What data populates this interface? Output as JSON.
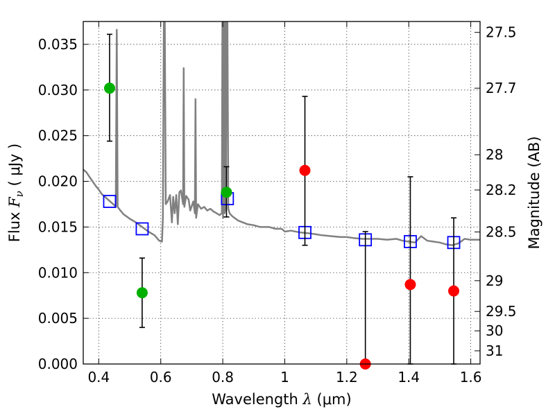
{
  "chart_data": {
    "type": "scatter",
    "xlabel": {
      "prefix": "Wavelength  ",
      "symbol": "λ",
      "unit": " (μm)"
    },
    "ylabel": {
      "prefix": "Flux  ",
      "symbol": "F",
      "subscript": "ν",
      "unit": "  ( μJy )"
    },
    "y2label": "Magnitude (AB)",
    "xlim": [
      0.35,
      1.63
    ],
    "ylim": [
      0.0,
      0.0375
    ],
    "grid": true,
    "xticks": [
      {
        "value": 0.4,
        "label": "0.4"
      },
      {
        "value": 0.6,
        "label": "0.6"
      },
      {
        "value": 0.8,
        "label": "0.8"
      },
      {
        "value": 1.0,
        "label": "1"
      },
      {
        "value": 1.2,
        "label": "1.2"
      },
      {
        "value": 1.4,
        "label": "1.4"
      },
      {
        "value": 1.6,
        "label": "1.6"
      }
    ],
    "yticks": [
      {
        "value": 0.0,
        "label": "0.000"
      },
      {
        "value": 0.005,
        "label": "0.005"
      },
      {
        "value": 0.01,
        "label": "0.010"
      },
      {
        "value": 0.015,
        "label": "0.015"
      },
      {
        "value": 0.02,
        "label": "0.020"
      },
      {
        "value": 0.025,
        "label": "0.025"
      },
      {
        "value": 0.03,
        "label": "0.030"
      },
      {
        "value": 0.035,
        "label": "0.035"
      }
    ],
    "y2ticks": [
      {
        "value": 27.5,
        "label": "27.5"
      },
      {
        "value": 27.7,
        "label": "27.7"
      },
      {
        "value": 28.0,
        "label": "28"
      },
      {
        "value": 28.2,
        "label": "28.2"
      },
      {
        "value": 28.5,
        "label": "28.5"
      },
      {
        "value": 29.0,
        "label": "29"
      },
      {
        "value": 29.5,
        "label": "29.5"
      },
      {
        "value": 30.0,
        "label": "30"
      },
      {
        "value": 31.0,
        "label": "31"
      }
    ],
    "colors": {
      "model": "#808080",
      "green": "#00b000",
      "red": "#ff0000",
      "box": "#0000ff",
      "errorbar": "#000000",
      "grid": "#444444"
    },
    "model_spectrum": [
      [
        0.35,
        0.0213
      ],
      [
        0.36,
        0.021
      ],
      [
        0.37,
        0.0205
      ],
      [
        0.38,
        0.02
      ],
      [
        0.39,
        0.0195
      ],
      [
        0.4,
        0.0191
      ],
      [
        0.41,
        0.0186
      ],
      [
        0.42,
        0.0183
      ],
      [
        0.43,
        0.018
      ],
      [
        0.44,
        0.0177
      ],
      [
        0.45,
        0.0174
      ],
      [
        0.455,
        0.0172
      ],
      [
        0.458,
        0.0366
      ],
      [
        0.461,
        0.0172
      ],
      [
        0.47,
        0.0168
      ],
      [
        0.48,
        0.0164
      ],
      [
        0.5,
        0.0159
      ],
      [
        0.52,
        0.0155
      ],
      [
        0.54,
        0.015
      ],
      [
        0.56,
        0.0145
      ],
      [
        0.58,
        0.0141
      ],
      [
        0.595,
        0.0135
      ],
      [
        0.604,
        0.0134
      ],
      [
        0.607,
        0.016
      ],
      [
        0.61,
        0.038
      ],
      [
        0.613,
        0.038
      ],
      [
        0.616,
        0.0175
      ],
      [
        0.622,
        0.0178
      ],
      [
        0.63,
        0.0185
      ],
      [
        0.636,
        0.0155
      ],
      [
        0.64,
        0.0183
      ],
      [
        0.645,
        0.0165
      ],
      [
        0.65,
        0.0185
      ],
      [
        0.655,
        0.0153
      ],
      [
        0.66,
        0.0188
      ],
      [
        0.665,
        0.019
      ],
      [
        0.672,
        0.0175
      ],
      [
        0.674,
        0.0324
      ],
      [
        0.676,
        0.0172
      ],
      [
        0.682,
        0.0184
      ],
      [
        0.69,
        0.018
      ],
      [
        0.695,
        0.0168
      ],
      [
        0.705,
        0.0178
      ],
      [
        0.71,
        0.0165
      ],
      [
        0.712,
        0.029
      ],
      [
        0.714,
        0.016
      ],
      [
        0.72,
        0.0175
      ],
      [
        0.73,
        0.017
      ],
      [
        0.74,
        0.0172
      ],
      [
        0.75,
        0.0168
      ],
      [
        0.76,
        0.017
      ],
      [
        0.77,
        0.0167
      ],
      [
        0.78,
        0.0165
      ],
      [
        0.79,
        0.0163
      ],
      [
        0.797,
        0.0165
      ],
      [
        0.799,
        0.038
      ],
      [
        0.801,
        0.016
      ],
      [
        0.803,
        0.038
      ],
      [
        0.806,
        0.0165
      ],
      [
        0.808,
        0.038
      ],
      [
        0.81,
        0.0168
      ],
      [
        0.812,
        0.038
      ],
      [
        0.815,
        0.038
      ],
      [
        0.818,
        0.017
      ],
      [
        0.822,
        0.0165
      ],
      [
        0.83,
        0.0162
      ],
      [
        0.85,
        0.0157
      ],
      [
        0.88,
        0.0153
      ],
      [
        0.9,
        0.0152
      ],
      [
        0.92,
        0.015
      ],
      [
        0.95,
        0.015
      ],
      [
        0.97,
        0.0148
      ],
      [
        0.99,
        0.0148
      ],
      [
        1.0,
        0.0145
      ],
      [
        1.02,
        0.0146
      ],
      [
        1.05,
        0.0144
      ],
      [
        1.08,
        0.0143
      ],
      [
        1.1,
        0.0142
      ],
      [
        1.12,
        0.0141
      ],
      [
        1.15,
        0.014
      ],
      [
        1.18,
        0.0139
      ],
      [
        1.2,
        0.0139
      ],
      [
        1.22,
        0.0138
      ],
      [
        1.25,
        0.0137
      ],
      [
        1.27,
        0.0137
      ],
      [
        1.3,
        0.0137
      ],
      [
        1.33,
        0.0136
      ],
      [
        1.36,
        0.0137
      ],
      [
        1.38,
        0.0135
      ],
      [
        1.4,
        0.0134
      ],
      [
        1.42,
        0.0133
      ],
      [
        1.44,
        0.014
      ],
      [
        1.46,
        0.0135
      ],
      [
        1.48,
        0.0134
      ],
      [
        1.5,
        0.0133
      ],
      [
        1.52,
        0.0131
      ],
      [
        1.54,
        0.013
      ],
      [
        1.56,
        0.0132
      ],
      [
        1.58,
        0.0137
      ],
      [
        1.6,
        0.0136
      ],
      [
        1.63,
        0.0136
      ]
    ],
    "model_photometry": [
      {
        "x": 0.435,
        "y": 0.0178
      },
      {
        "x": 0.54,
        "y": 0.0148
      },
      {
        "x": 0.815,
        "y": 0.0181
      },
      {
        "x": 1.065,
        "y": 0.0144
      },
      {
        "x": 1.26,
        "y": 0.0136
      },
      {
        "x": 1.405,
        "y": 0.0134
      },
      {
        "x": 1.545,
        "y": 0.0133
      }
    ],
    "observed": [
      {
        "x": 0.435,
        "y": 0.0302,
        "yerr_low": 0.0244,
        "yerr_high": 0.0361,
        "color": "green"
      },
      {
        "x": 0.54,
        "y": 0.0078,
        "yerr_low": 0.004,
        "yerr_high": 0.0116,
        "color": "green"
      },
      {
        "x": 0.812,
        "y": 0.0188,
        "yerr_low": 0.0161,
        "yerr_high": 0.0216,
        "color": "green"
      },
      {
        "x": 1.065,
        "y": 0.0212,
        "yerr_low": 0.013,
        "yerr_high": 0.0293,
        "color": "red"
      },
      {
        "x": 1.26,
        "y": 0.0,
        "yerr_low": 0.0,
        "yerr_high": 0.0145,
        "color": "red"
      },
      {
        "x": 1.405,
        "y": 0.0087,
        "yerr_low": 0.0,
        "yerr_high": 0.0205,
        "color": "red"
      },
      {
        "x": 1.545,
        "y": 0.008,
        "yerr_low": 0.0,
        "yerr_high": 0.016,
        "color": "red"
      }
    ]
  }
}
